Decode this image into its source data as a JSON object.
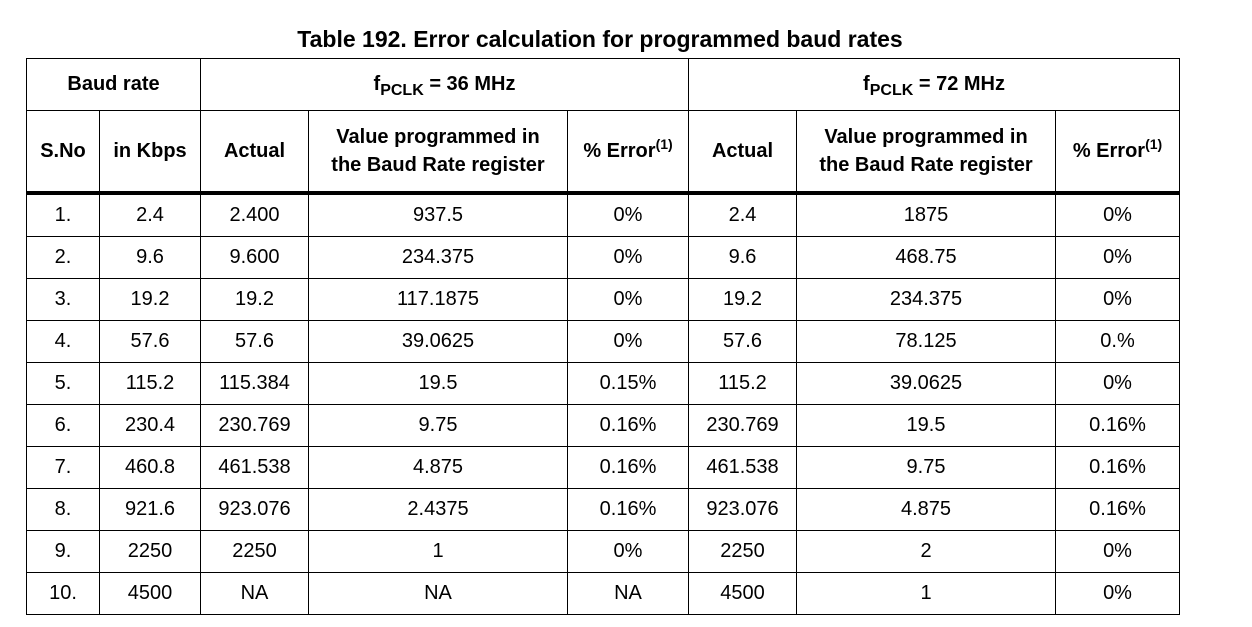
{
  "caption": "Table 192. Error calculation for programmed baud rates",
  "header": {
    "baud_rate": "Baud rate",
    "group1": {
      "f": "f",
      "sub": "PCLK",
      "suffix": " = 36 MHz"
    },
    "group2": {
      "f": "f",
      "sub": "PCLK",
      "suffix": " = 72 MHz"
    },
    "sno": "S.No",
    "kbps": "in Kbps",
    "actual": "Actual",
    "value_line1": "Value programmed in",
    "value_line2": "the Baud Rate register",
    "error": "% Error",
    "error_note": "(1)"
  },
  "rows": [
    {
      "sno": "1.",
      "kbps": "2.4",
      "a36": "2.400",
      "v36": "937.5",
      "e36": "0%",
      "a72": "2.4",
      "v72": "1875",
      "e72": "0%"
    },
    {
      "sno": "2.",
      "kbps": "9.6",
      "a36": "9.600",
      "v36": "234.375",
      "e36": "0%",
      "a72": "9.6",
      "v72": "468.75",
      "e72": "0%"
    },
    {
      "sno": "3.",
      "kbps": "19.2",
      "a36": "19.2",
      "v36": "117.1875",
      "e36": "0%",
      "a72": "19.2",
      "v72": "234.375",
      "e72": "0%"
    },
    {
      "sno": "4.",
      "kbps": "57.6",
      "a36": "57.6",
      "v36": "39.0625",
      "e36": "0%",
      "a72": "57.6",
      "v72": "78.125",
      "e72": "0.%"
    },
    {
      "sno": "5.",
      "kbps": "115.2",
      "a36": "115.384",
      "v36": "19.5",
      "e36": "0.15%",
      "a72": "115.2",
      "v72": "39.0625",
      "e72": "0%"
    },
    {
      "sno": "6.",
      "kbps": "230.4",
      "a36": "230.769",
      "v36": "9.75",
      "e36": "0.16%",
      "a72": "230.769",
      "v72": "19.5",
      "e72": "0.16%"
    },
    {
      "sno": "7.",
      "kbps": "460.8",
      "a36": "461.538",
      "v36": "4.875",
      "e36": "0.16%",
      "a72": "461.538",
      "v72": "9.75",
      "e72": "0.16%"
    },
    {
      "sno": "8.",
      "kbps": "921.6",
      "a36": "923.076",
      "v36": "2.4375",
      "e36": "0.16%",
      "a72": "923.076",
      "v72": "4.875",
      "e72": "0.16%"
    },
    {
      "sno": "9.",
      "kbps": "2250",
      "a36": "2250",
      "v36": "1",
      "e36": "0%",
      "a72": "2250",
      "v72": "2",
      "e72": "0%"
    },
    {
      "sno": "10.",
      "kbps": "4500",
      "a36": "NA",
      "v36": "NA",
      "e36": "NA",
      "a72": "4500",
      "v72": "1",
      "e72": "0%"
    }
  ]
}
